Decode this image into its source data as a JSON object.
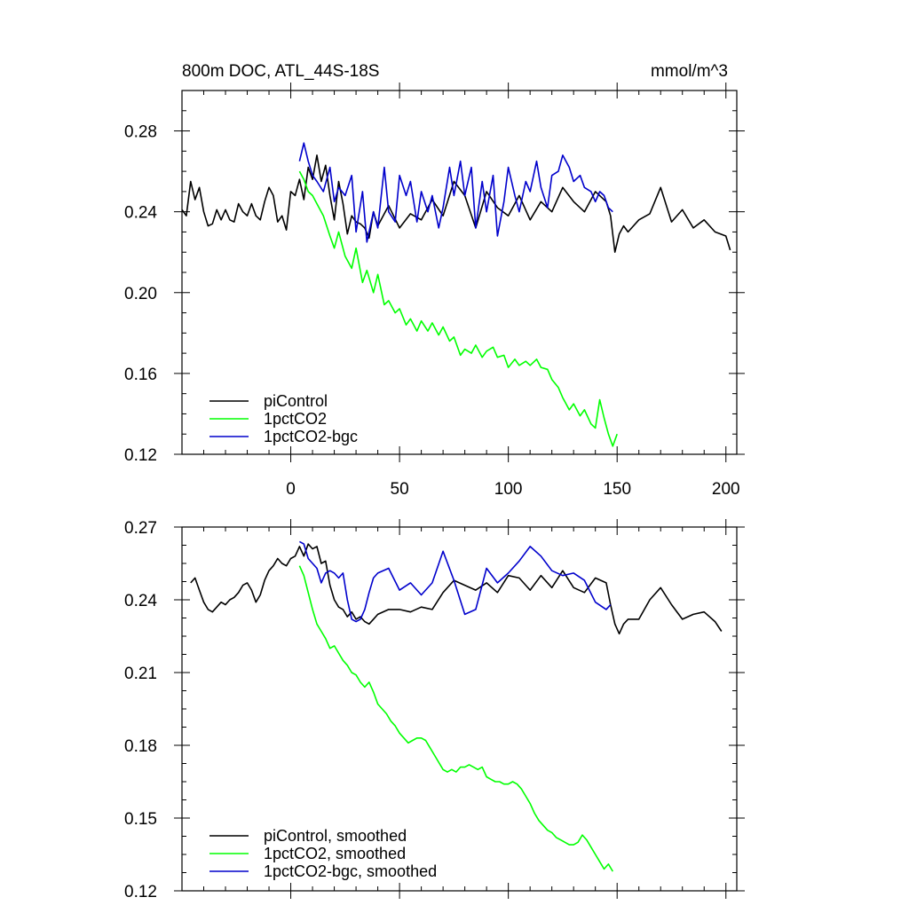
{
  "chart_data": [
    {
      "type": "line",
      "title": "800m DOC, ATL_44S-18S",
      "units": "mmol/m^3",
      "xlim": [
        -50,
        205
      ],
      "ylim": [
        0.12,
        0.3
      ],
      "xticks": [
        0,
        50,
        100,
        150,
        200
      ],
      "xtick_labels": [
        "0",
        "50",
        "100",
        "150",
        "200"
      ],
      "yticks": [
        0.12,
        0.16,
        0.2,
        0.24,
        0.28
      ],
      "ytick_labels": [
        "0.12",
        "0.16",
        "0.20",
        "0.24",
        "0.28"
      ],
      "legend_position": "bottom-left",
      "grid": false,
      "series": [
        {
          "name": "piControl",
          "color": "#000000",
          "x": [
            -50,
            -48,
            -46,
            -44,
            -42,
            -40,
            -38,
            -36,
            -34,
            -32,
            -30,
            -28,
            -26,
            -24,
            -22,
            -20,
            -18,
            -16,
            -14,
            -12,
            -10,
            -8,
            -6,
            -4,
            -2,
            0,
            2,
            4,
            6,
            8,
            10,
            12,
            14,
            16,
            18,
            20,
            22,
            24,
            26,
            28,
            30,
            32,
            34,
            36,
            38,
            40,
            45,
            50,
            55,
            60,
            65,
            70,
            75,
            80,
            85,
            90,
            95,
            100,
            105,
            110,
            115,
            120,
            125,
            130,
            135,
            140,
            145,
            147,
            149,
            151,
            153,
            155,
            160,
            165,
            170,
            175,
            180,
            185,
            190,
            195,
            200,
            202
          ],
          "y": [
            0.241,
            0.238,
            0.255,
            0.246,
            0.252,
            0.24,
            0.233,
            0.234,
            0.241,
            0.236,
            0.241,
            0.236,
            0.235,
            0.244,
            0.24,
            0.238,
            0.244,
            0.238,
            0.236,
            0.245,
            0.252,
            0.248,
            0.235,
            0.238,
            0.231,
            0.25,
            0.248,
            0.256,
            0.246,
            0.262,
            0.256,
            0.268,
            0.255,
            0.263,
            0.248,
            0.236,
            0.255,
            0.244,
            0.229,
            0.238,
            0.235,
            0.234,
            0.232,
            0.227,
            0.24,
            0.233,
            0.243,
            0.232,
            0.239,
            0.236,
            0.246,
            0.238,
            0.255,
            0.248,
            0.232,
            0.25,
            0.242,
            0.238,
            0.248,
            0.236,
            0.245,
            0.24,
            0.252,
            0.245,
            0.24,
            0.25,
            0.245,
            0.238,
            0.22,
            0.229,
            0.233,
            0.23,
            0.236,
            0.239,
            0.252,
            0.235,
            0.241,
            0.232,
            0.236,
            0.23,
            0.228,
            0.221
          ]
        },
        {
          "name": "1pctCO2",
          "color": "#00ff00",
          "x": [
            4,
            6,
            8,
            10,
            12,
            15,
            18,
            20,
            22,
            25,
            28,
            30,
            33,
            35,
            38,
            40,
            43,
            45,
            48,
            50,
            53,
            55,
            58,
            60,
            63,
            65,
            68,
            70,
            73,
            75,
            78,
            80,
            83,
            85,
            88,
            90,
            93,
            95,
            98,
            100,
            103,
            105,
            108,
            110,
            113,
            115,
            118,
            120,
            123,
            125,
            128,
            130,
            133,
            135,
            138,
            140,
            142,
            144,
            146,
            148,
            150
          ],
          "y": [
            0.26,
            0.256,
            0.25,
            0.248,
            0.244,
            0.238,
            0.228,
            0.222,
            0.23,
            0.218,
            0.212,
            0.222,
            0.205,
            0.211,
            0.2,
            0.209,
            0.194,
            0.196,
            0.19,
            0.192,
            0.184,
            0.187,
            0.181,
            0.186,
            0.181,
            0.185,
            0.179,
            0.183,
            0.176,
            0.178,
            0.169,
            0.172,
            0.17,
            0.174,
            0.168,
            0.171,
            0.173,
            0.168,
            0.169,
            0.163,
            0.167,
            0.164,
            0.166,
            0.164,
            0.167,
            0.163,
            0.162,
            0.157,
            0.153,
            0.148,
            0.142,
            0.145,
            0.139,
            0.142,
            0.135,
            0.133,
            0.147,
            0.138,
            0.13,
            0.124,
            0.13
          ]
        },
        {
          "name": "1pctCO2-bgc",
          "color": "#0000cc",
          "x": [
            4,
            6,
            8,
            10,
            12,
            15,
            18,
            20,
            22,
            25,
            28,
            30,
            33,
            35,
            38,
            40,
            43,
            45,
            48,
            50,
            53,
            55,
            58,
            60,
            63,
            65,
            68,
            70,
            73,
            75,
            78,
            80,
            83,
            85,
            88,
            90,
            93,
            95,
            98,
            100,
            103,
            105,
            108,
            110,
            113,
            115,
            118,
            120,
            123,
            125,
            128,
            130,
            133,
            135,
            138,
            140,
            142,
            144,
            146,
            148
          ],
          "y": [
            0.265,
            0.274,
            0.265,
            0.258,
            0.255,
            0.25,
            0.262,
            0.245,
            0.252,
            0.248,
            0.258,
            0.23,
            0.25,
            0.225,
            0.24,
            0.232,
            0.262,
            0.24,
            0.235,
            0.258,
            0.248,
            0.255,
            0.235,
            0.25,
            0.24,
            0.248,
            0.232,
            0.242,
            0.262,
            0.248,
            0.265,
            0.248,
            0.262,
            0.232,
            0.255,
            0.24,
            0.258,
            0.228,
            0.245,
            0.262,
            0.248,
            0.24,
            0.255,
            0.25,
            0.265,
            0.252,
            0.242,
            0.258,
            0.26,
            0.268,
            0.262,
            0.255,
            0.258,
            0.252,
            0.25,
            0.245,
            0.25,
            0.248,
            0.242,
            0.24
          ]
        }
      ]
    },
    {
      "type": "line",
      "title": "",
      "units": "",
      "xlim": [
        -50,
        205
      ],
      "ylim": [
        0.12,
        0.27
      ],
      "xticks": [
        0,
        50,
        100,
        150,
        200
      ],
      "yticks": [
        0.12,
        0.15,
        0.18,
        0.21,
        0.24,
        0.27
      ],
      "ytick_labels": [
        "0.12",
        "0.15",
        "0.18",
        "0.21",
        "0.24",
        "0.27"
      ],
      "legend_position": "bottom-left",
      "grid": false,
      "series": [
        {
          "name": "piControl, smoothed",
          "color": "#000000",
          "x": [
            -46,
            -44,
            -42,
            -40,
            -38,
            -36,
            -34,
            -32,
            -30,
            -28,
            -26,
            -24,
            -22,
            -20,
            -18,
            -16,
            -14,
            -12,
            -10,
            -8,
            -6,
            -4,
            -2,
            0,
            2,
            4,
            6,
            8,
            10,
            12,
            14,
            16,
            18,
            20,
            22,
            24,
            26,
            28,
            30,
            32,
            34,
            36,
            38,
            40,
            45,
            50,
            55,
            60,
            65,
            70,
            75,
            80,
            85,
            90,
            95,
            100,
            105,
            110,
            115,
            120,
            125,
            130,
            135,
            140,
            145,
            147,
            149,
            151,
            153,
            155,
            160,
            165,
            170,
            175,
            180,
            185,
            190,
            195,
            198
          ],
          "y": [
            0.247,
            0.249,
            0.244,
            0.239,
            0.236,
            0.235,
            0.237,
            0.239,
            0.238,
            0.24,
            0.241,
            0.243,
            0.246,
            0.247,
            0.244,
            0.239,
            0.242,
            0.248,
            0.252,
            0.254,
            0.257,
            0.255,
            0.254,
            0.257,
            0.258,
            0.262,
            0.258,
            0.263,
            0.261,
            0.262,
            0.255,
            0.256,
            0.246,
            0.24,
            0.237,
            0.236,
            0.233,
            0.235,
            0.232,
            0.233,
            0.231,
            0.23,
            0.232,
            0.234,
            0.236,
            0.236,
            0.235,
            0.237,
            0.236,
            0.243,
            0.248,
            0.246,
            0.244,
            0.247,
            0.243,
            0.25,
            0.249,
            0.244,
            0.25,
            0.245,
            0.252,
            0.245,
            0.243,
            0.249,
            0.247,
            0.238,
            0.23,
            0.226,
            0.23,
            0.232,
            0.232,
            0.24,
            0.245,
            0.238,
            0.232,
            0.234,
            0.235,
            0.231,
            0.227
          ]
        },
        {
          "name": "1pctCO2, smoothed",
          "color": "#00ff00",
          "x": [
            4,
            6,
            8,
            10,
            12,
            14,
            16,
            18,
            20,
            22,
            24,
            26,
            28,
            30,
            32,
            34,
            36,
            38,
            40,
            42,
            44,
            46,
            48,
            50,
            52,
            54,
            56,
            58,
            60,
            62,
            64,
            66,
            68,
            70,
            72,
            74,
            76,
            78,
            80,
            82,
            84,
            86,
            88,
            90,
            92,
            94,
            96,
            98,
            100,
            102,
            104,
            106,
            108,
            110,
            112,
            114,
            116,
            118,
            120,
            122,
            124,
            126,
            128,
            130,
            132,
            134,
            136,
            138,
            140,
            142,
            144,
            146,
            148
          ],
          "y": [
            0.254,
            0.25,
            0.243,
            0.236,
            0.23,
            0.227,
            0.224,
            0.22,
            0.221,
            0.218,
            0.215,
            0.213,
            0.21,
            0.209,
            0.206,
            0.204,
            0.206,
            0.202,
            0.197,
            0.195,
            0.193,
            0.19,
            0.188,
            0.185,
            0.183,
            0.181,
            0.182,
            0.183,
            0.183,
            0.182,
            0.179,
            0.176,
            0.173,
            0.17,
            0.169,
            0.17,
            0.169,
            0.171,
            0.171,
            0.172,
            0.171,
            0.17,
            0.171,
            0.167,
            0.166,
            0.165,
            0.165,
            0.164,
            0.164,
            0.165,
            0.164,
            0.162,
            0.159,
            0.156,
            0.152,
            0.149,
            0.147,
            0.145,
            0.144,
            0.142,
            0.141,
            0.14,
            0.139,
            0.139,
            0.14,
            0.143,
            0.141,
            0.138,
            0.135,
            0.132,
            0.129,
            0.131,
            0.128
          ]
        },
        {
          "name": "1pctCO2-bgc, smoothed",
          "color": "#0000cc",
          "x": [
            4,
            6,
            8,
            10,
            12,
            14,
            16,
            18,
            20,
            22,
            24,
            26,
            28,
            30,
            32,
            34,
            36,
            38,
            40,
            45,
            50,
            55,
            60,
            65,
            70,
            75,
            80,
            85,
            90,
            95,
            100,
            105,
            110,
            115,
            120,
            125,
            130,
            135,
            140,
            145,
            147
          ],
          "y": [
            0.264,
            0.263,
            0.257,
            0.255,
            0.253,
            0.247,
            0.251,
            0.252,
            0.251,
            0.249,
            0.251,
            0.24,
            0.232,
            0.231,
            0.232,
            0.236,
            0.243,
            0.249,
            0.251,
            0.253,
            0.244,
            0.247,
            0.242,
            0.247,
            0.26,
            0.248,
            0.234,
            0.236,
            0.253,
            0.247,
            0.251,
            0.256,
            0.262,
            0.258,
            0.252,
            0.25,
            0.251,
            0.248,
            0.239,
            0.236,
            0.238
          ]
        }
      ]
    }
  ]
}
